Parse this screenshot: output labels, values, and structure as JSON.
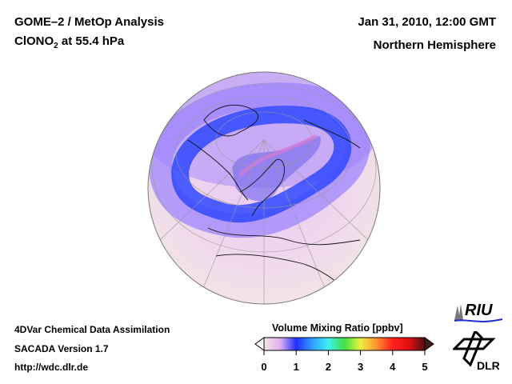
{
  "header": {
    "title_line1": "GOME–2 / MetOp Analysis",
    "species_prefix": "ClONO",
    "species_subscript": "2",
    "species_suffix": " at 55.4 hPa",
    "date": "Jan 31, 2010, 12:00 GMT",
    "region": "Northern Hemisphere"
  },
  "footer": {
    "line1": "4DVar Chemical Data Assimilation",
    "line2": "SACADA Version 1.7",
    "line3": "http://wdc.dlr.de"
  },
  "colorbar": {
    "label": "Volume Mixing Ratio [ppbv]",
    "ticks": [
      "0",
      "1",
      "2",
      "3",
      "4",
      "5"
    ],
    "range": [
      0,
      5
    ],
    "colors": [
      "#f4e6ea",
      "#e0b0f0",
      "#2030ff",
      "#30a0ff",
      "#40f0f0",
      "#40e040",
      "#f0f040",
      "#ff9030",
      "#ff2020",
      "#e01010",
      "#501010"
    ]
  },
  "logos": {
    "riu": "RIU",
    "dlr": "DLR"
  }
}
